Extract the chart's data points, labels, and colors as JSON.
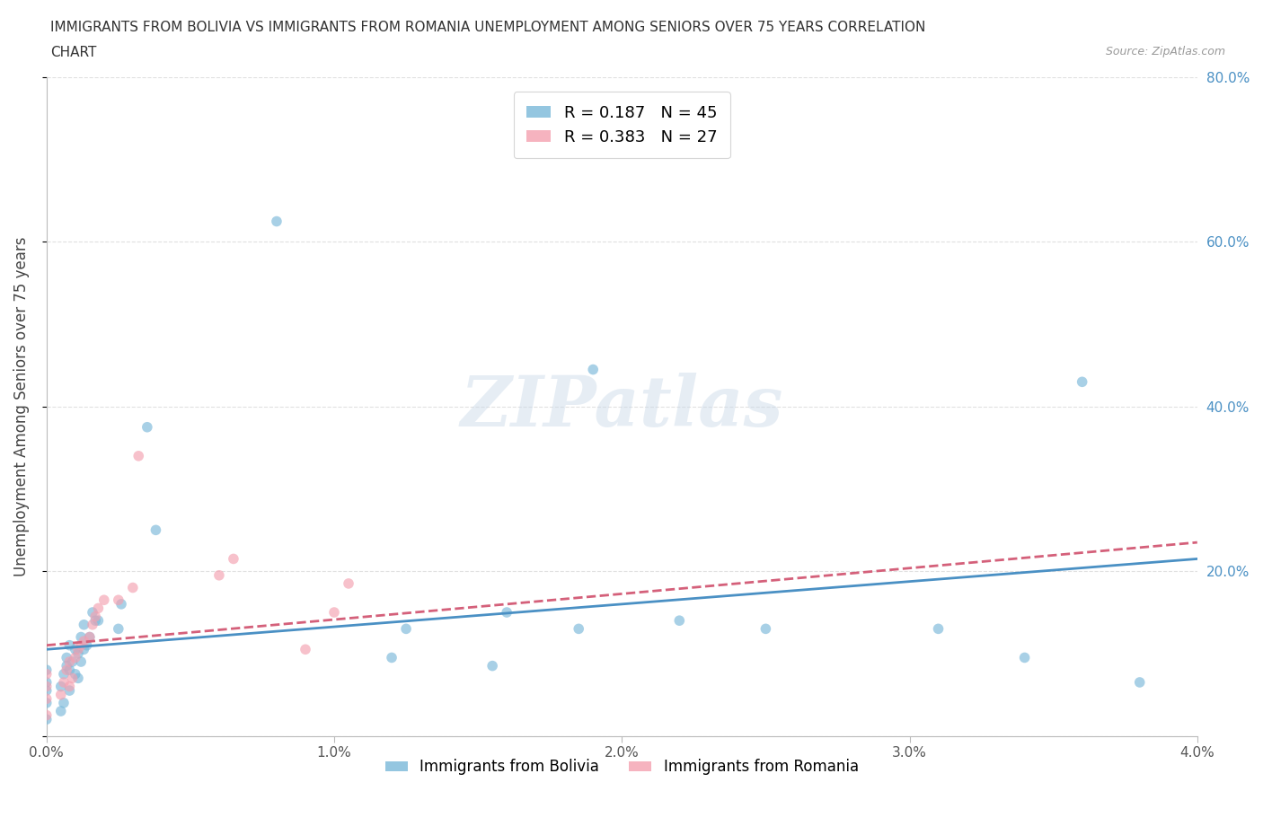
{
  "title_line1": "IMMIGRANTS FROM BOLIVIA VS IMMIGRANTS FROM ROMANIA UNEMPLOYMENT AMONG SENIORS OVER 75 YEARS CORRELATION",
  "title_line2": "CHART",
  "source": "Source: ZipAtlas.com",
  "ylabel": "Unemployment Among Seniors over 75 years",
  "xlim": [
    0.0,
    0.04
  ],
  "ylim": [
    0.0,
    0.8
  ],
  "xticks": [
    0.0,
    0.01,
    0.02,
    0.03,
    0.04
  ],
  "xtick_labels": [
    "0.0%",
    "1.0%",
    "2.0%",
    "3.0%",
    "4.0%"
  ],
  "yticks": [
    0.0,
    0.2,
    0.4,
    0.6,
    0.8
  ],
  "ytick_labels_right": [
    "",
    "20.0%",
    "40.0%",
    "60.0%",
    "80.0%"
  ],
  "bolivia_color": "#7ab8d9",
  "romania_color": "#f4a0b0",
  "bolivia_line_color": "#4a90c4",
  "romania_line_color": "#d4607a",
  "bolivia_R": 0.187,
  "bolivia_N": 45,
  "romania_R": 0.383,
  "romania_N": 27,
  "legend_label_bolivia": "Immigrants from Bolivia",
  "legend_label_romania": "Immigrants from Romania",
  "bolivia_x": [
    0.0,
    0.0,
    0.0,
    0.0,
    0.0,
    0.0005,
    0.0005,
    0.0006,
    0.0006,
    0.0007,
    0.0007,
    0.0008,
    0.0008,
    0.0008,
    0.0009,
    0.001,
    0.001,
    0.0011,
    0.0011,
    0.0012,
    0.0012,
    0.0013,
    0.0013,
    0.0014,
    0.0015,
    0.0016,
    0.0017,
    0.0018,
    0.0025,
    0.0026,
    0.0035,
    0.0038,
    0.008,
    0.012,
    0.0125,
    0.0155,
    0.016,
    0.0185,
    0.019,
    0.022,
    0.025,
    0.031,
    0.034,
    0.036,
    0.038
  ],
  "bolivia_y": [
    0.02,
    0.04,
    0.055,
    0.065,
    0.08,
    0.03,
    0.06,
    0.04,
    0.075,
    0.085,
    0.095,
    0.055,
    0.08,
    0.11,
    0.09,
    0.075,
    0.105,
    0.07,
    0.1,
    0.09,
    0.12,
    0.105,
    0.135,
    0.11,
    0.12,
    0.15,
    0.14,
    0.14,
    0.13,
    0.16,
    0.375,
    0.25,
    0.625,
    0.095,
    0.13,
    0.085,
    0.15,
    0.13,
    0.445,
    0.14,
    0.13,
    0.13,
    0.095,
    0.43,
    0.065
  ],
  "romania_x": [
    0.0,
    0.0,
    0.0,
    0.0,
    0.0005,
    0.0006,
    0.0007,
    0.0008,
    0.0008,
    0.0009,
    0.001,
    0.0011,
    0.0012,
    0.0013,
    0.0015,
    0.0016,
    0.0017,
    0.0018,
    0.002,
    0.0025,
    0.003,
    0.0032,
    0.006,
    0.0065,
    0.009,
    0.01,
    0.0105
  ],
  "romania_y": [
    0.025,
    0.045,
    0.06,
    0.075,
    0.05,
    0.065,
    0.08,
    0.06,
    0.09,
    0.07,
    0.095,
    0.105,
    0.11,
    0.115,
    0.12,
    0.135,
    0.145,
    0.155,
    0.165,
    0.165,
    0.18,
    0.34,
    0.195,
    0.215,
    0.105,
    0.15,
    0.185
  ],
  "trend_bolivia_x0": 0.0,
  "trend_bolivia_x1": 0.04,
  "trend_bolivia_y0": 0.105,
  "trend_bolivia_y1": 0.215,
  "trend_romania_x0": 0.0,
  "trend_romania_x1": 0.04,
  "trend_romania_y0": 0.11,
  "trend_romania_y1": 0.235,
  "watermark_text": "ZIPatlas",
  "background_color": "#ffffff",
  "grid_color": "#e0e0e0"
}
